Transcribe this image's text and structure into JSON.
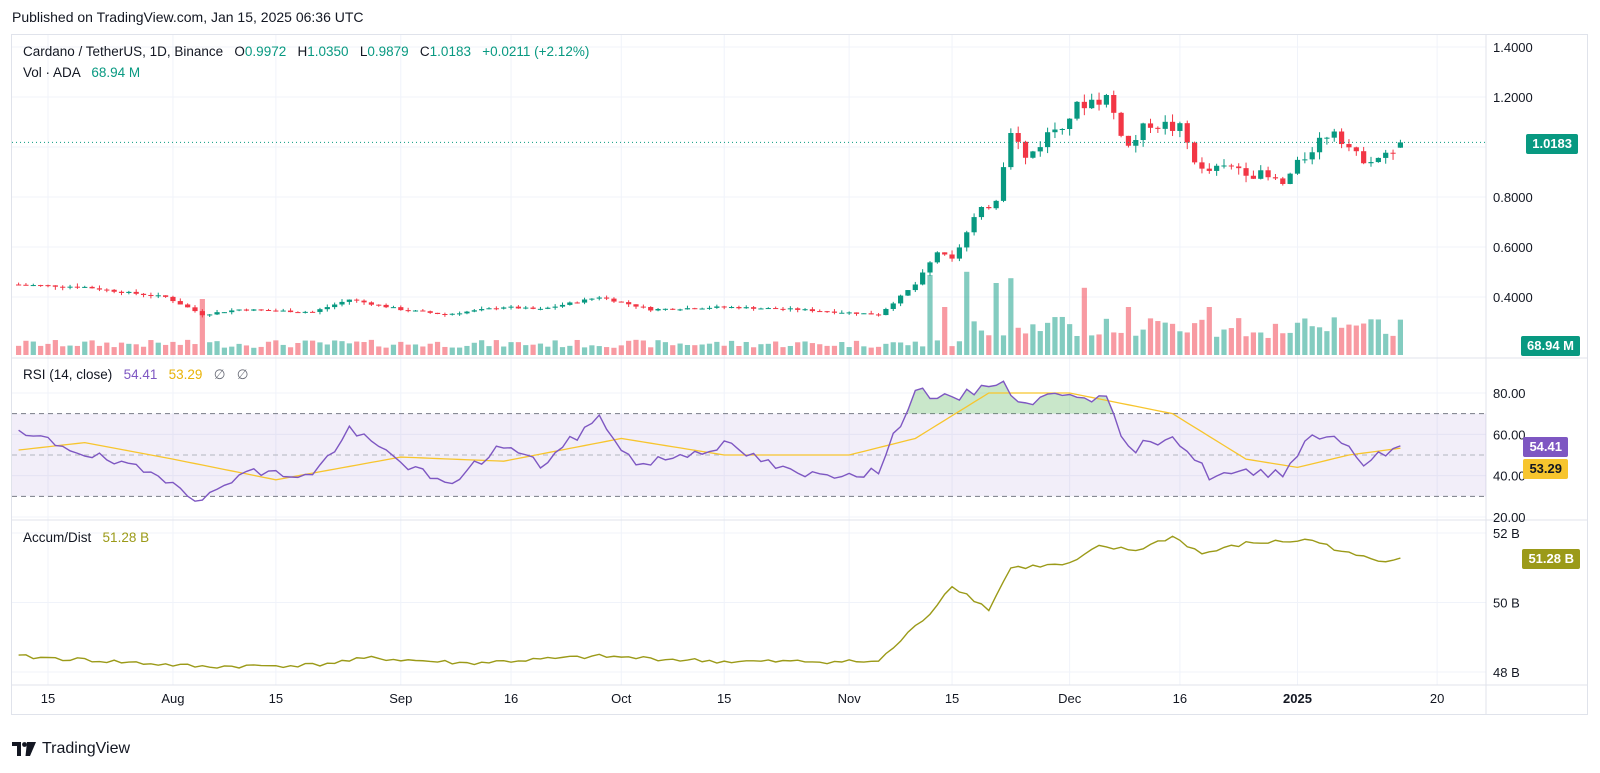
{
  "published": "Published on TradingView.com, Jan 15, 2025 06:36 UTC",
  "footer": {
    "brand": "TradingView"
  },
  "legend": {
    "title": "Cardano / TetherUS, 1D, Binance",
    "open_label": "O",
    "open": "0.9972",
    "high_label": "H",
    "high": "1.0350",
    "low_label": "L",
    "low": "0.9879",
    "close_label": "C",
    "close": "1.0183",
    "change": "+0.0211 (+2.12%)",
    "vol_label": "Vol · ADA",
    "vol": "68.94 M",
    "rsi_label": "RSI (14, close)",
    "rsi": "54.41",
    "rsi_ma": "53.29",
    "rsi_extra1": "∅",
    "rsi_extra2": "∅",
    "ad_label": "Accum/Dist",
    "ad": "51.28 B"
  },
  "badges": {
    "price": "1.0183",
    "volume": "68.94 M",
    "rsi": "54.41",
    "rsi_ma": "53.29",
    "ad": "51.28 B"
  },
  "colors": {
    "up": "#089981",
    "down": "#f23645",
    "rsi": "#7e57c2",
    "rsi_ma": "#f7c52e",
    "ad": "#9b9a18"
  },
  "chart_data": [
    {
      "type": "candlestick",
      "title": "Cardano / TetherUS, 1D, Binance",
      "y_ticks": [
        "1.4000",
        "1.2000",
        "0.8000",
        "0.6000",
        "0.4000"
      ],
      "ylim": [
        0.28,
        1.42
      ],
      "x_ticks": [
        "15",
        "Aug",
        "15",
        "Sep",
        "16",
        "Oct",
        "15",
        "Nov",
        "15",
        "Dec",
        "16",
        "2025",
        "20"
      ],
      "x_tick_dates": [
        "2024-07-15",
        "2024-08-01",
        "2024-08-15",
        "2024-09-01",
        "2024-09-16",
        "2024-10-01",
        "2024-10-15",
        "2024-11-01",
        "2024-11-15",
        "2024-12-01",
        "2024-12-16",
        "2025-01-01",
        "2025-01-20"
      ],
      "last_price": 1.0183,
      "close_anchors": [
        {
          "date": "2024-07-01",
          "value": 0.39
        },
        {
          "date": "2024-07-05",
          "value": 0.42
        },
        {
          "date": "2024-07-10",
          "value": 0.45
        },
        {
          "date": "2024-07-20",
          "value": 0.44
        },
        {
          "date": "2024-07-25",
          "value": 0.42
        },
        {
          "date": "2024-07-31",
          "value": 0.4
        },
        {
          "date": "2024-08-05",
          "value": 0.33
        },
        {
          "date": "2024-08-10",
          "value": 0.35
        },
        {
          "date": "2024-08-20",
          "value": 0.34
        },
        {
          "date": "2024-08-25",
          "value": 0.39
        },
        {
          "date": "2024-09-01",
          "value": 0.35
        },
        {
          "date": "2024-09-07",
          "value": 0.33
        },
        {
          "date": "2024-09-15",
          "value": 0.36
        },
        {
          "date": "2024-09-20",
          "value": 0.35
        },
        {
          "date": "2024-09-28",
          "value": 0.4
        },
        {
          "date": "2024-10-05",
          "value": 0.35
        },
        {
          "date": "2024-10-15",
          "value": 0.36
        },
        {
          "date": "2024-10-25",
          "value": 0.35
        },
        {
          "date": "2024-11-05",
          "value": 0.33
        },
        {
          "date": "2024-11-10",
          "value": 0.45
        },
        {
          "date": "2024-11-13",
          "value": 0.58
        },
        {
          "date": "2024-11-15",
          "value": 0.55
        },
        {
          "date": "2024-11-18",
          "value": 0.71
        },
        {
          "date": "2024-11-21",
          "value": 0.8
        },
        {
          "date": "2024-11-23",
          "value": 1.08
        },
        {
          "date": "2024-11-25",
          "value": 0.95
        },
        {
          "date": "2024-11-28",
          "value": 1.05
        },
        {
          "date": "2024-12-03",
          "value": 1.18
        },
        {
          "date": "2024-12-06",
          "value": 1.2
        },
        {
          "date": "2024-12-09",
          "value": 1.0
        },
        {
          "date": "2024-12-12",
          "value": 1.1
        },
        {
          "date": "2024-12-16",
          "value": 1.07
        },
        {
          "date": "2024-12-19",
          "value": 0.9
        },
        {
          "date": "2024-12-24",
          "value": 0.92
        },
        {
          "date": "2024-12-30",
          "value": 0.85
        },
        {
          "date": "2025-01-03",
          "value": 1.0
        },
        {
          "date": "2025-01-06",
          "value": 1.08
        },
        {
          "date": "2025-01-09",
          "value": 0.96
        },
        {
          "date": "2025-01-13",
          "value": 0.96
        },
        {
          "date": "2025-01-15",
          "value": 1.0183
        }
      ]
    },
    {
      "type": "bar",
      "title": "Vol · ADA",
      "last_value": "68.94 M",
      "spikes": [
        {
          "date": "2024-08-05",
          "value": 3.5
        },
        {
          "date": "2024-11-12",
          "value": 5.0
        },
        {
          "date": "2024-11-14",
          "value": 3.0
        },
        {
          "date": "2024-11-17",
          "value": 5.2
        },
        {
          "date": "2024-11-21",
          "value": 4.5
        },
        {
          "date": "2024-11-23",
          "value": 4.8
        },
        {
          "date": "2024-12-03",
          "value": 4.2
        },
        {
          "date": "2024-12-09",
          "value": 3.0
        },
        {
          "date": "2024-12-20",
          "value": 3.0
        },
        {
          "date": "2025-01-03",
          "value": 1.8
        },
        {
          "date": "2025-01-07",
          "value": 1.7
        }
      ]
    },
    {
      "type": "line",
      "title": "RSI (14, close)",
      "y_ticks": [
        "80.00",
        "60.00",
        "40.00",
        "20.00"
      ],
      "ylim": [
        15,
        95
      ],
      "band": [
        30,
        70
      ],
      "midline": 50,
      "series": [
        {
          "name": "RSI",
          "last": 54.41,
          "anchors": [
            {
              "date": "2024-07-01",
              "value": 48
            },
            {
              "date": "2024-07-06",
              "value": 63
            },
            {
              "date": "2024-07-15",
              "value": 57
            },
            {
              "date": "2024-07-25",
              "value": 45
            },
            {
              "date": "2024-08-01",
              "value": 38
            },
            {
              "date": "2024-08-05",
              "value": 27
            },
            {
              "date": "2024-08-10",
              "value": 42
            },
            {
              "date": "2024-08-20",
              "value": 40
            },
            {
              "date": "2024-08-25",
              "value": 62
            },
            {
              "date": "2024-09-03",
              "value": 43
            },
            {
              "date": "2024-09-07",
              "value": 35
            },
            {
              "date": "2024-09-15",
              "value": 55
            },
            {
              "date": "2024-09-20",
              "value": 45
            },
            {
              "date": "2024-09-28",
              "value": 68
            },
            {
              "date": "2024-10-03",
              "value": 45
            },
            {
              "date": "2024-10-15",
              "value": 55
            },
            {
              "date": "2024-10-25",
              "value": 40
            },
            {
              "date": "2024-11-05",
              "value": 42
            },
            {
              "date": "2024-11-10",
              "value": 82
            },
            {
              "date": "2024-11-15",
              "value": 76
            },
            {
              "date": "2024-11-21",
              "value": 86
            },
            {
              "date": "2024-11-25",
              "value": 75
            },
            {
              "date": "2024-12-01",
              "value": 81
            },
            {
              "date": "2024-12-06",
              "value": 76
            },
            {
              "date": "2024-12-09",
              "value": 52
            },
            {
              "date": "2024-12-15",
              "value": 60
            },
            {
              "date": "2024-12-20",
              "value": 40
            },
            {
              "date": "2024-12-30",
              "value": 42
            },
            {
              "date": "2025-01-03",
              "value": 60
            },
            {
              "date": "2025-01-07",
              "value": 58
            },
            {
              "date": "2025-01-10",
              "value": 46
            },
            {
              "date": "2025-01-15",
              "value": 54.41
            }
          ]
        },
        {
          "name": "RSI-based MA",
          "last": 53.29,
          "anchors": [
            {
              "date": "2024-07-01",
              "value": 45
            },
            {
              "date": "2024-07-10",
              "value": 52
            },
            {
              "date": "2024-07-20",
              "value": 56
            },
            {
              "date": "2024-08-01",
              "value": 48
            },
            {
              "date": "2024-08-15",
              "value": 38
            },
            {
              "date": "2024-09-01",
              "value": 49
            },
            {
              "date": "2024-09-15",
              "value": 47
            },
            {
              "date": "2024-10-01",
              "value": 58
            },
            {
              "date": "2024-10-15",
              "value": 50
            },
            {
              "date": "2024-11-01",
              "value": 50
            },
            {
              "date": "2024-11-10",
              "value": 58
            },
            {
              "date": "2024-11-20",
              "value": 80
            },
            {
              "date": "2024-12-01",
              "value": 80
            },
            {
              "date": "2024-12-15",
              "value": 70
            },
            {
              "date": "2024-12-25",
              "value": 48
            },
            {
              "date": "2025-01-01",
              "value": 44
            },
            {
              "date": "2025-01-08",
              "value": 50
            },
            {
              "date": "2025-01-15",
              "value": 53.29
            }
          ]
        }
      ]
    },
    {
      "type": "line",
      "title": "Accum/Dist",
      "y_ticks": [
        "52 B",
        "50 B",
        "48 B"
      ],
      "ylim": [
        47.9,
        52.1
      ],
      "series": [
        {
          "name": "Accum/Dist",
          "last": 51.28,
          "anchors": [
            {
              "date": "2024-07-01",
              "value": 48.3
            },
            {
              "date": "2024-07-06",
              "value": 48.5
            },
            {
              "date": "2024-07-20",
              "value": 48.35
            },
            {
              "date": "2024-08-05",
              "value": 48.15
            },
            {
              "date": "2024-08-20",
              "value": 48.2
            },
            {
              "date": "2024-08-28",
              "value": 48.4
            },
            {
              "date": "2024-09-10",
              "value": 48.25
            },
            {
              "date": "2024-09-28",
              "value": 48.45
            },
            {
              "date": "2024-10-15",
              "value": 48.3
            },
            {
              "date": "2024-11-05",
              "value": 48.3
            },
            {
              "date": "2024-11-12",
              "value": 49.7
            },
            {
              "date": "2024-11-15",
              "value": 50.5
            },
            {
              "date": "2024-11-20",
              "value": 49.8
            },
            {
              "date": "2024-11-23",
              "value": 51.0
            },
            {
              "date": "2024-12-01",
              "value": 51.1
            },
            {
              "date": "2024-12-05",
              "value": 51.6
            },
            {
              "date": "2024-12-10",
              "value": 51.5
            },
            {
              "date": "2024-12-15",
              "value": 51.9
            },
            {
              "date": "2024-12-19",
              "value": 51.4
            },
            {
              "date": "2024-12-25",
              "value": 51.7
            },
            {
              "date": "2025-01-03",
              "value": 51.8
            },
            {
              "date": "2025-01-08",
              "value": 51.4
            },
            {
              "date": "2025-01-12",
              "value": 51.2
            },
            {
              "date": "2025-01-15",
              "value": 51.28
            }
          ]
        }
      ]
    }
  ]
}
